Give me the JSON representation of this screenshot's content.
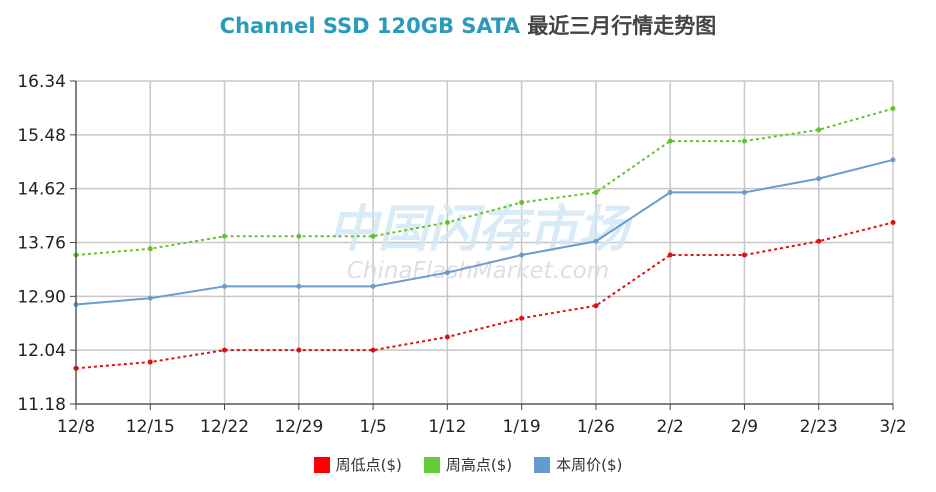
{
  "chart_data": {
    "type": "line",
    "title_en": "Channel SSD 120GB SATA",
    "title_cn": "最近三月行情走势图",
    "watermark_cn": "中国闪存市场",
    "watermark_en": "ChinaFlashMarket.com",
    "categories": [
      "12/8",
      "12/15",
      "12/22",
      "12/29",
      "1/5",
      "1/12",
      "1/19",
      "1/26",
      "2/2",
      "2/9",
      "2/23",
      "3/2"
    ],
    "y_ticks": [
      "16.34",
      "15.48",
      "14.62",
      "13.76",
      "12.90",
      "12.04",
      "11.18"
    ],
    "ylim": [
      11.18,
      16.34
    ],
    "series": [
      {
        "name": "周低点($)",
        "color": "#dd1111",
        "legend_color": "#ff0000",
        "dashed": true,
        "values": [
          11.75,
          11.85,
          12.04,
          12.04,
          12.04,
          12.25,
          12.55,
          12.75,
          13.56,
          13.56,
          13.78,
          14.08
        ]
      },
      {
        "name": "周高点($)",
        "color": "#66c22a",
        "legend_color": "#66cc33",
        "dashed": true,
        "values": [
          13.56,
          13.66,
          13.86,
          13.86,
          13.86,
          14.08,
          14.4,
          14.56,
          15.38,
          15.38,
          15.56,
          15.9
        ]
      },
      {
        "name": "本周价($)",
        "color": "#6a9ccc",
        "legend_color": "#6699cc",
        "dashed": false,
        "values": [
          12.77,
          12.87,
          13.06,
          13.06,
          13.06,
          13.28,
          13.56,
          13.78,
          14.56,
          14.56,
          14.78,
          15.08
        ]
      }
    ]
  }
}
